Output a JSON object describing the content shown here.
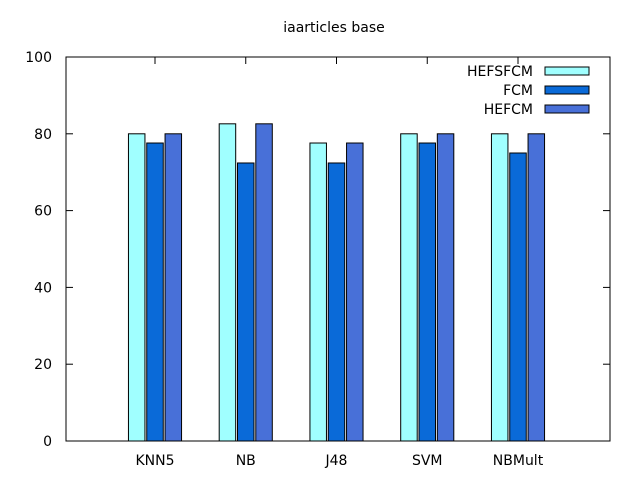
{
  "chart_data": {
    "type": "bar",
    "title": "iaarticles base",
    "xlabel": "",
    "ylabel": "",
    "categories": [
      "KNN5",
      "NB",
      "J48",
      "SVM",
      "NBMult"
    ],
    "series": [
      {
        "name": "HEFSFCM",
        "color": "#a0ffff",
        "values": [
          80,
          82.6,
          77.6,
          80,
          80
        ]
      },
      {
        "name": "FCM",
        "color": "#0a6ad8",
        "values": [
          77.6,
          72.4,
          72.4,
          77.6,
          75
        ]
      },
      {
        "name": "HEFCM",
        "color": "#4870d8",
        "values": [
          80,
          82.6,
          77.6,
          80,
          80
        ]
      }
    ],
    "ylim": [
      0,
      100
    ],
    "yticks": [
      "0",
      "20",
      "40",
      "60",
      "80",
      "100"
    ],
    "grid": false,
    "legend_position": "top-right"
  }
}
